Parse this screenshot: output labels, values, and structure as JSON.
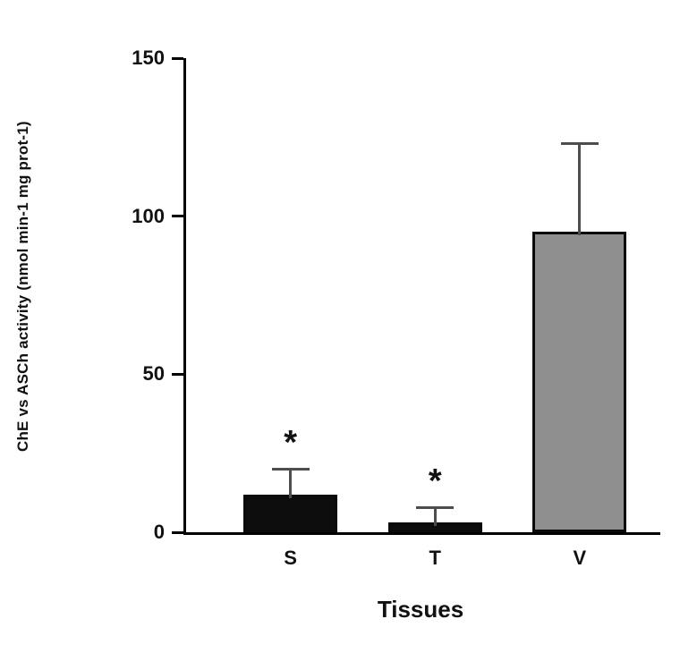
{
  "chart_data": {
    "type": "bar",
    "title": "",
    "xlabel": "Tissues",
    "ylabel": "ChE vs ASCh activity (nmol min-1 mg prot-1)",
    "categories": [
      "S",
      "T",
      "V"
    ],
    "values": [
      12,
      3,
      95
    ],
    "error_up": [
      8,
      5,
      28
    ],
    "significance": [
      "*",
      "*",
      null
    ],
    "bar_colors": [
      "#0d0d0d",
      "#0d0d0d",
      "#8f8f8f"
    ],
    "bar_border_color": "#0a0a0a",
    "error_bar_color": "#4d4d4d",
    "axis_color": "#000000",
    "ylim": [
      0,
      150
    ],
    "yticks": [
      0,
      50,
      100,
      150
    ],
    "grid": false,
    "legend": "none"
  }
}
